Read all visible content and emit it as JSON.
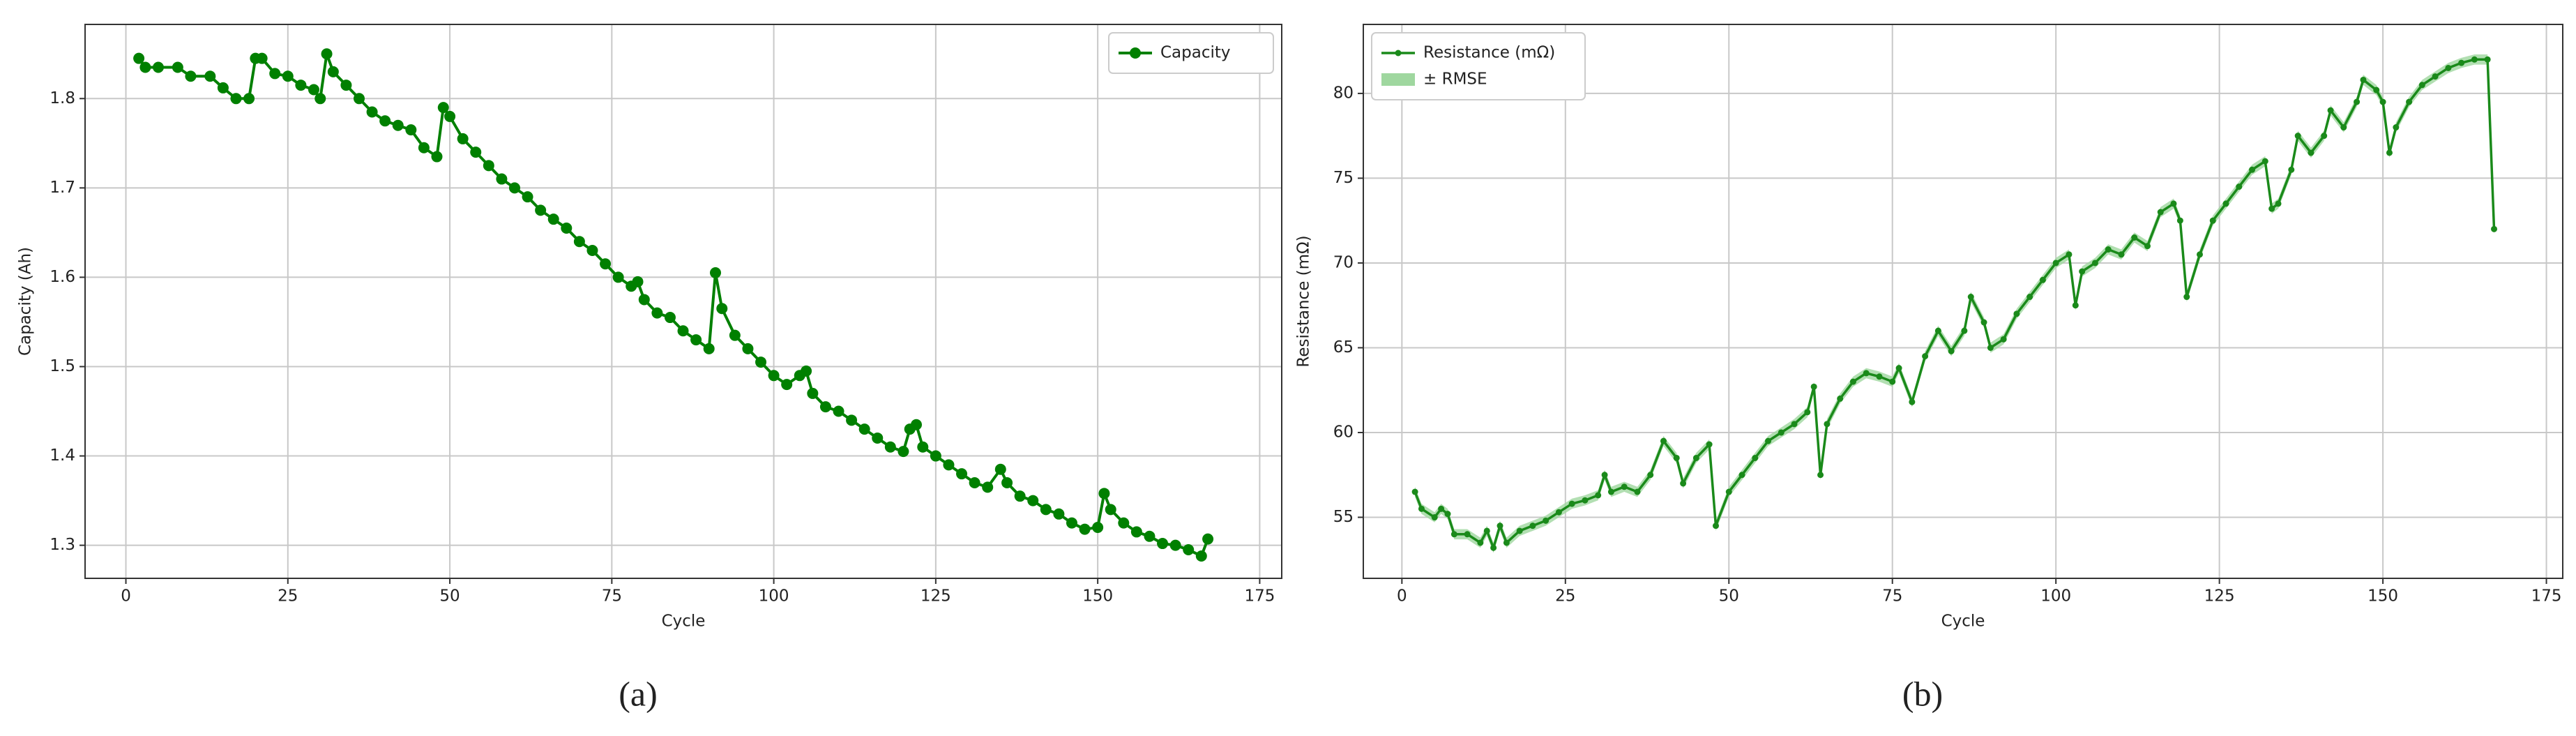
{
  "chart_data": [
    {
      "type": "line",
      "caption": "(a)",
      "xlabel": "Cycle",
      "ylabel": "Capacity (Ah)",
      "x": [
        2,
        3,
        5,
        8,
        10,
        13,
        15,
        17,
        19,
        20,
        21,
        23,
        25,
        27,
        29,
        30,
        31,
        32,
        34,
        36,
        38,
        40,
        42,
        44,
        46,
        48,
        49,
        50,
        52,
        54,
        56,
        58,
        60,
        62,
        64,
        66,
        68,
        70,
        72,
        74,
        76,
        78,
        79,
        80,
        82,
        84,
        86,
        88,
        90,
        91,
        92,
        94,
        96,
        98,
        100,
        102,
        104,
        105,
        106,
        108,
        110,
        112,
        114,
        116,
        118,
        120,
        121,
        122,
        123,
        125,
        127,
        129,
        131,
        133,
        135,
        136,
        138,
        140,
        142,
        144,
        146,
        148,
        150,
        151,
        152,
        154,
        156,
        158,
        160,
        162,
        164,
        166,
        167
      ],
      "series": [
        {
          "name": "Capacity",
          "color": "#008000",
          "values": [
            1.845,
            1.835,
            1.835,
            1.835,
            1.825,
            1.825,
            1.812,
            1.8,
            1.8,
            1.845,
            1.845,
            1.828,
            1.825,
            1.815,
            1.81,
            1.8,
            1.85,
            1.83,
            1.815,
            1.8,
            1.785,
            1.775,
            1.77,
            1.765,
            1.745,
            1.735,
            1.79,
            1.78,
            1.755,
            1.74,
            1.725,
            1.71,
            1.7,
            1.69,
            1.675,
            1.665,
            1.655,
            1.64,
            1.63,
            1.615,
            1.6,
            1.59,
            1.595,
            1.575,
            1.56,
            1.555,
            1.54,
            1.53,
            1.52,
            1.605,
            1.565,
            1.535,
            1.52,
            1.505,
            1.49,
            1.48,
            1.49,
            1.495,
            1.47,
            1.455,
            1.45,
            1.44,
            1.43,
            1.42,
            1.41,
            1.405,
            1.43,
            1.435,
            1.41,
            1.4,
            1.39,
            1.38,
            1.37,
            1.365,
            1.385,
            1.37,
            1.355,
            1.35,
            1.34,
            1.335,
            1.325,
            1.318,
            1.32,
            1.358,
            1.34,
            1.325,
            1.315,
            1.31,
            1.302,
            1.3,
            1.295,
            1.288,
            1.307
          ]
        }
      ],
      "xlim": [
        -6.3,
        178.4
      ],
      "ylim": [
        1.263,
        1.883
      ],
      "xticks": [
        0,
        25,
        50,
        75,
        100,
        125,
        150,
        175
      ],
      "yticks": [
        1.3,
        1.4,
        1.5,
        1.6,
        1.7,
        1.8
      ],
      "grid": true,
      "legend": "upper right"
    },
    {
      "type": "line",
      "caption": "(b)",
      "xlabel": "Cycle",
      "ylabel": "Resistance (mΩ)",
      "x": [
        2,
        3,
        5,
        6,
        7,
        8,
        10,
        12,
        13,
        14,
        15,
        16,
        18,
        20,
        22,
        24,
        26,
        28,
        30,
        31,
        32,
        34,
        36,
        38,
        40,
        42,
        43,
        45,
        47,
        48,
        50,
        52,
        54,
        56,
        58,
        60,
        62,
        63,
        64,
        65,
        67,
        69,
        71,
        73,
        75,
        76,
        78,
        80,
        82,
        84,
        86,
        87,
        89,
        90,
        92,
        94,
        96,
        98,
        100,
        102,
        103,
        104,
        106,
        108,
        110,
        112,
        114,
        116,
        118,
        119,
        120,
        122,
        124,
        126,
        128,
        130,
        132,
        133,
        134,
        136,
        137,
        139,
        141,
        142,
        144,
        146,
        147,
        149,
        150,
        151,
        152,
        154,
        156,
        158,
        160,
        162,
        164,
        166,
        167
      ],
      "series": [
        {
          "name": "Resistance (mΩ)",
          "color": "#1a8a1a",
          "band_label": "± RMSE",
          "band_color": "#9fd79f",
          "rmse": 0.3,
          "values": [
            56.5,
            55.5,
            55,
            55.5,
            55.2,
            54,
            54,
            53.5,
            54.2,
            53.2,
            54.5,
            53.5,
            54.2,
            54.5,
            54.8,
            55.3,
            55.8,
            56,
            56.3,
            57.5,
            56.5,
            56.8,
            56.5,
            57.5,
            59.5,
            58.5,
            57,
            58.5,
            59.3,
            54.5,
            56.5,
            57.5,
            58.5,
            59.5,
            60,
            60.5,
            61.2,
            62.7,
            57.5,
            60.5,
            62,
            63,
            63.5,
            63.3,
            63,
            63.8,
            61.8,
            64.5,
            66,
            64.8,
            66,
            68,
            66.5,
            65,
            65.5,
            67,
            68,
            69,
            70,
            70.5,
            67.5,
            69.5,
            70,
            70.8,
            70.5,
            71.5,
            71,
            73,
            73.5,
            72.5,
            68,
            70.5,
            72.5,
            73.5,
            74.5,
            75.5,
            76,
            73.2,
            73.5,
            75.5,
            77.5,
            76.5,
            77.5,
            79,
            78,
            79.5,
            80.8,
            80.2,
            79.5,
            76.5,
            78,
            79.5,
            80.5,
            81,
            81.5,
            81.8,
            82,
            82,
            72
          ]
        }
      ],
      "xlim": [
        -5.9,
        177.5
      ],
      "ylim": [
        51.4,
        84.07
      ],
      "xticks": [
        0,
        25,
        50,
        75,
        100,
        125,
        150,
        175
      ],
      "yticks": [
        55,
        60,
        65,
        70,
        75,
        80
      ],
      "grid": true,
      "legend": "upper left"
    }
  ]
}
